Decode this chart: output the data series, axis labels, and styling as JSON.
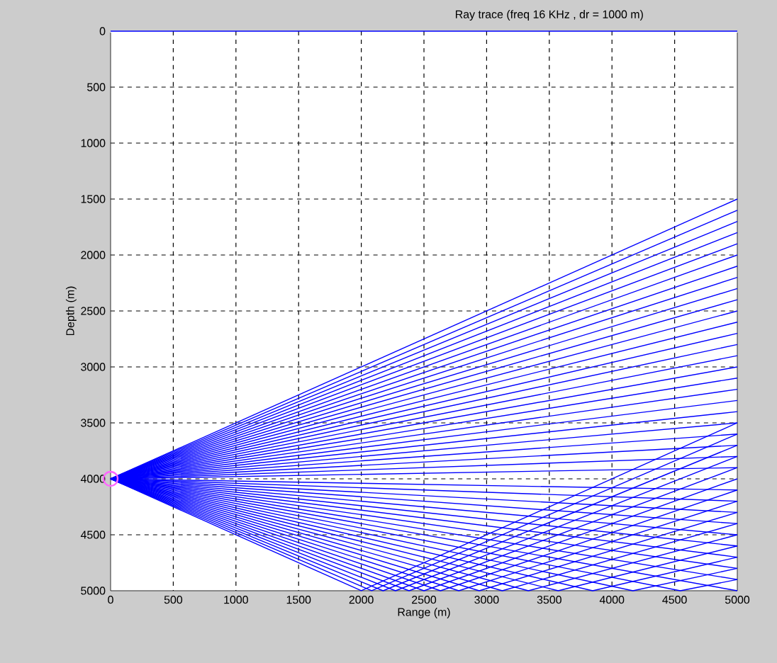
{
  "chart_data": {
    "type": "line",
    "title": "Ray trace   (freq  16 KHz , dr = 1000 m)",
    "xlabel": "Range (m)",
    "ylabel": "Depth (m)",
    "xlim": [
      0,
      5000
    ],
    "ylim": [
      5000,
      0
    ],
    "xticks": [
      0,
      500,
      1000,
      1500,
      2000,
      2500,
      3000,
      3500,
      4000,
      4500,
      5000
    ],
    "yticks": [
      0,
      500,
      1000,
      1500,
      2000,
      2500,
      3000,
      3500,
      4000,
      4500,
      5000
    ],
    "grid": true,
    "series": [
      {
        "color": "#0000ff",
        "x": [
          0,
          5000
        ],
        "values": [
          0,
          0
        ]
      },
      {
        "color": "#0000ff",
        "x": [
          0,
          5000
        ],
        "values": [
          4000,
          3900
        ]
      },
      {
        "color": "#0000ff",
        "x": [
          0,
          5000
        ],
        "values": [
          4000,
          3800
        ]
      },
      {
        "color": "#0000ff",
        "x": [
          0,
          5000
        ],
        "values": [
          4000,
          3700
        ]
      },
      {
        "color": "#0000ff",
        "x": [
          0,
          5000
        ],
        "values": [
          4000,
          3600
        ]
      },
      {
        "color": "#0000ff",
        "x": [
          0,
          5000
        ],
        "values": [
          4000,
          3500
        ]
      },
      {
        "color": "#0000ff",
        "x": [
          0,
          5000
        ],
        "values": [
          4000,
          3400
        ]
      },
      {
        "color": "#0000ff",
        "x": [
          0,
          5000
        ],
        "values": [
          4000,
          3300
        ]
      },
      {
        "color": "#0000ff",
        "x": [
          0,
          5000
        ],
        "values": [
          4000,
          3200
        ]
      },
      {
        "color": "#0000ff",
        "x": [
          0,
          5000
        ],
        "values": [
          4000,
          3100
        ]
      },
      {
        "color": "#0000ff",
        "x": [
          0,
          5000
        ],
        "values": [
          4000,
          3000
        ]
      },
      {
        "color": "#0000ff",
        "x": [
          0,
          5000
        ],
        "values": [
          4000,
          2900
        ]
      },
      {
        "color": "#0000ff",
        "x": [
          0,
          5000
        ],
        "values": [
          4000,
          2800
        ]
      },
      {
        "color": "#0000ff",
        "x": [
          0,
          5000
        ],
        "values": [
          4000,
          2700
        ]
      },
      {
        "color": "#0000ff",
        "x": [
          0,
          5000
        ],
        "values": [
          4000,
          2600
        ]
      },
      {
        "color": "#0000ff",
        "x": [
          0,
          5000
        ],
        "values": [
          4000,
          2500
        ]
      },
      {
        "color": "#0000ff",
        "x": [
          0,
          5000
        ],
        "values": [
          4000,
          2400
        ]
      },
      {
        "color": "#0000ff",
        "x": [
          0,
          5000
        ],
        "values": [
          4000,
          2300
        ]
      },
      {
        "color": "#0000ff",
        "x": [
          0,
          5000
        ],
        "values": [
          4000,
          2200
        ]
      },
      {
        "color": "#0000ff",
        "x": [
          0,
          5000
        ],
        "values": [
          4000,
          2100
        ]
      },
      {
        "color": "#0000ff",
        "x": [
          0,
          5000
        ],
        "values": [
          4000,
          2000
        ]
      },
      {
        "color": "#0000ff",
        "x": [
          0,
          5000
        ],
        "values": [
          4000,
          1900
        ]
      },
      {
        "color": "#0000ff",
        "x": [
          0,
          5000
        ],
        "values": [
          4000,
          1800
        ]
      },
      {
        "color": "#0000ff",
        "x": [
          0,
          5000
        ],
        "values": [
          4000,
          1700
        ]
      },
      {
        "color": "#0000ff",
        "x": [
          0,
          5000
        ],
        "values": [
          4000,
          1600
        ]
      },
      {
        "color": "#0000ff",
        "x": [
          0,
          5000
        ],
        "values": [
          4000,
          1500
        ]
      },
      {
        "color": "#0000ff",
        "x": [
          0,
          5000
        ],
        "values": [
          4000,
          4100
        ]
      },
      {
        "color": "#0000ff",
        "x": [
          0,
          5000
        ],
        "values": [
          4000,
          4200
        ]
      },
      {
        "color": "#0000ff",
        "x": [
          0,
          5000
        ],
        "values": [
          4000,
          4300
        ]
      },
      {
        "color": "#0000ff",
        "x": [
          0,
          5000
        ],
        "values": [
          4000,
          4400
        ]
      },
      {
        "color": "#0000ff",
        "x": [
          0,
          5000
        ],
        "values": [
          4000,
          4500
        ]
      },
      {
        "color": "#0000ff",
        "x": [
          0,
          5000
        ],
        "values": [
          4000,
          4600
        ]
      },
      {
        "color": "#0000ff",
        "x": [
          0,
          5000
        ],
        "values": [
          4000,
          4700
        ]
      },
      {
        "color": "#0000ff",
        "x": [
          0,
          5000
        ],
        "values": [
          4000,
          4800
        ]
      },
      {
        "color": "#0000ff",
        "x": [
          0,
          5000
        ],
        "values": [
          4000,
          4900
        ]
      },
      {
        "color": "#0000ff",
        "x": [
          0,
          5000
        ],
        "values": [
          4000,
          5000
        ]
      },
      {
        "color": "#0000ff",
        "x": [
          0,
          4545,
          5000
        ],
        "values": [
          4000,
          5000,
          4900
        ]
      },
      {
        "color": "#0000ff",
        "x": [
          0,
          4167,
          5000
        ],
        "values": [
          4000,
          5000,
          4800
        ]
      },
      {
        "color": "#0000ff",
        "x": [
          0,
          3846,
          5000
        ],
        "values": [
          4000,
          5000,
          4700
        ]
      },
      {
        "color": "#0000ff",
        "x": [
          0,
          3571,
          5000
        ],
        "values": [
          4000,
          5000,
          4600
        ]
      },
      {
        "color": "#0000ff",
        "x": [
          0,
          3333,
          5000
        ],
        "values": [
          4000,
          5000,
          4500
        ]
      },
      {
        "color": "#0000ff",
        "x": [
          0,
          3125,
          5000
        ],
        "values": [
          4000,
          5000,
          4400
        ]
      },
      {
        "color": "#0000ff",
        "x": [
          0,
          2941,
          5000
        ],
        "values": [
          4000,
          5000,
          4300
        ]
      },
      {
        "color": "#0000ff",
        "x": [
          0,
          2778,
          5000
        ],
        "values": [
          4000,
          5000,
          4200
        ]
      },
      {
        "color": "#0000ff",
        "x": [
          0,
          2632,
          5000
        ],
        "values": [
          4000,
          5000,
          4100
        ]
      },
      {
        "color": "#0000ff",
        "x": [
          0,
          2500,
          5000
        ],
        "values": [
          4000,
          5000,
          4000
        ]
      },
      {
        "color": "#0000ff",
        "x": [
          0,
          2381,
          5000
        ],
        "values": [
          4000,
          5000,
          3900
        ]
      },
      {
        "color": "#0000ff",
        "x": [
          0,
          2273,
          5000
        ],
        "values": [
          4000,
          5000,
          3800
        ]
      },
      {
        "color": "#0000ff",
        "x": [
          0,
          2174,
          5000
        ],
        "values": [
          4000,
          5000,
          3700
        ]
      },
      {
        "color": "#0000ff",
        "x": [
          0,
          2083,
          5000
        ],
        "values": [
          4000,
          5000,
          3600
        ]
      },
      {
        "color": "#0000ff",
        "x": [
          0,
          2000,
          5000
        ],
        "values": [
          4000,
          5000,
          3500
        ]
      },
      {
        "type": "scatter",
        "marker": "circle",
        "color": "#ff66ff",
        "x": [
          0
        ],
        "values": [
          4000
        ]
      }
    ]
  }
}
